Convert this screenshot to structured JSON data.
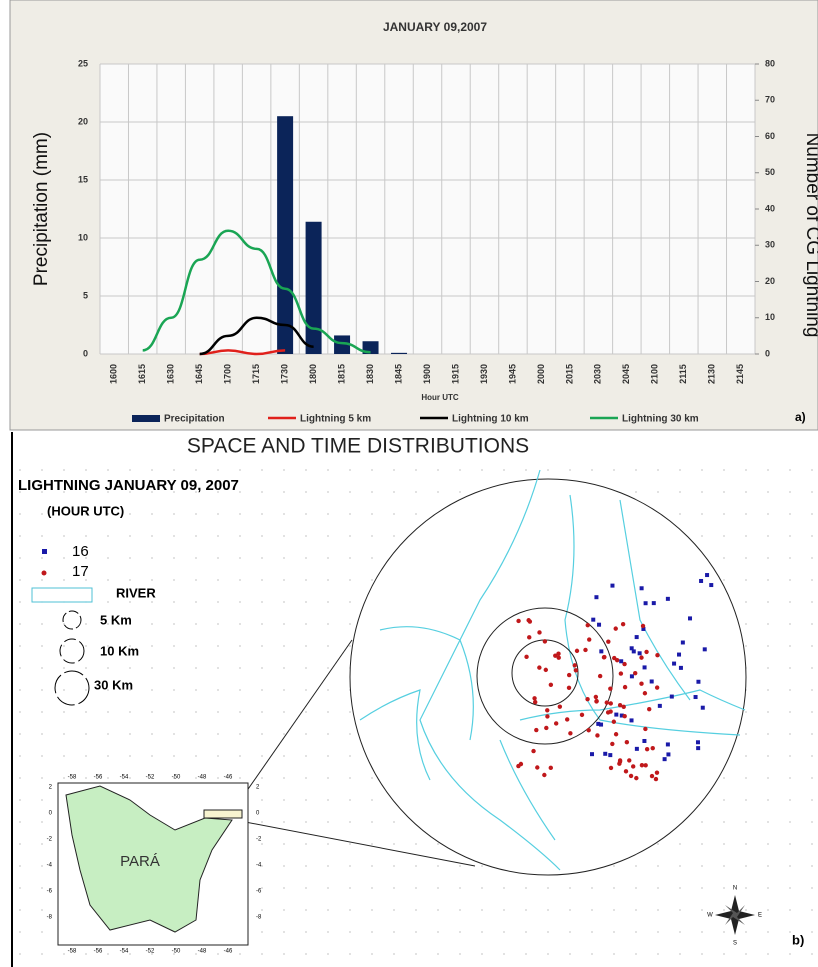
{
  "chart_data": {
    "type": "bar",
    "title": "JANUARY 09,2007",
    "xlabel": "Hour UTC",
    "ylabel": "Precipitation (mm)",
    "y2label": "Number of CG Lightning",
    "categories": [
      "1600",
      "1615",
      "1630",
      "1645",
      "1700",
      "1715",
      "1730",
      "1800",
      "1815",
      "1830",
      "1845",
      "1900",
      "1915",
      "1930",
      "1945",
      "2000",
      "2015",
      "2030",
      "2045",
      "2100",
      "2115",
      "2130",
      "2145"
    ],
    "series": [
      {
        "name": "Precipitation",
        "type": "bar",
        "color": "#0b2459",
        "values": [
          0,
          0,
          0,
          0,
          0,
          0,
          20.5,
          11.4,
          1.6,
          1.1,
          0.1,
          0,
          0,
          0,
          0,
          0,
          0,
          0,
          0,
          0,
          0,
          0,
          0
        ]
      },
      {
        "name": "Lightning 5 km",
        "type": "line",
        "axis": "y2",
        "color": "#e0201b",
        "values": [
          null,
          null,
          null,
          0,
          1,
          0,
          1,
          null,
          null,
          null,
          null,
          null,
          null,
          null,
          null,
          null,
          null,
          null,
          null,
          null,
          null,
          null,
          null
        ]
      },
      {
        "name": "Lightning 10 km",
        "type": "line",
        "axis": "y2",
        "color": "#000000",
        "values": [
          null,
          null,
          null,
          0,
          5,
          10,
          8,
          2,
          null,
          null,
          null,
          null,
          null,
          null,
          null,
          null,
          null,
          null,
          null,
          null,
          null,
          null,
          null
        ]
      },
      {
        "name": "Lightning 30 km",
        "type": "line",
        "axis": "y2",
        "color": "#1aa554",
        "values": [
          null,
          1,
          10,
          26,
          34,
          29,
          18,
          7,
          3,
          0.5,
          null,
          null,
          null,
          null,
          null,
          null,
          null,
          null,
          null,
          null,
          null,
          null,
          null
        ]
      }
    ],
    "ylim": [
      0,
      25
    ],
    "yticks": [
      0,
      5,
      10,
      15,
      20,
      25
    ],
    "y2lim": [
      0,
      80
    ],
    "y2ticks": [
      0,
      10,
      20,
      30,
      40,
      50,
      60,
      70,
      80
    ],
    "grid": true,
    "legend": "bottom",
    "panel": "a)"
  },
  "map": {
    "title": "SPACE AND TIME DISTRIBUTIONS",
    "heading": "LIGHTNING JANUARY 09, 2007",
    "subheading": "(HOUR UTC)",
    "legend": [
      "16",
      "17",
      "RIVER",
      "5 Km",
      "10 Km",
      "30 Km"
    ],
    "region": "PARÁ",
    "inset_xticks": [
      "-58",
      "-56",
      "-54",
      "-52",
      "-50",
      "-48",
      "-46"
    ],
    "inset_yticks": [
      "2",
      "0",
      "-2",
      "-4",
      "-6",
      "-8"
    ],
    "compass": [
      "N",
      "S",
      "E",
      "W"
    ],
    "panel": "b)"
  }
}
